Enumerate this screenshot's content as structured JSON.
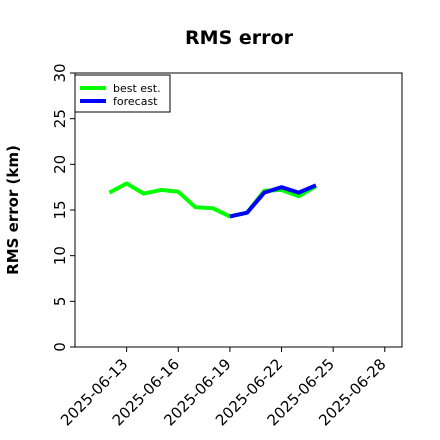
{
  "chart_data": {
    "type": "line",
    "title": "RMS error",
    "xlabel": "",
    "ylabel": "RMS error (km)",
    "ylim": [
      0,
      30
    ],
    "xlim": [
      "2025-06-10",
      "2025-06-29"
    ],
    "yticks": [
      0,
      5,
      10,
      15,
      20,
      25,
      30
    ],
    "xticks": [
      "2025-06-13",
      "2025-06-16",
      "2025-06-19",
      "2025-06-22",
      "2025-06-25",
      "2025-06-28"
    ],
    "highlighted_xtick": "2025-06-19",
    "highlight_color": "#228b22",
    "grid": false,
    "legend_position": "upper-left",
    "series": [
      {
        "name": "best est.",
        "color": "#00ff00",
        "x": [
          "2025-06-12",
          "2025-06-13",
          "2025-06-14",
          "2025-06-15",
          "2025-06-16",
          "2025-06-17",
          "2025-06-18",
          "2025-06-19",
          "2025-06-20",
          "2025-06-21",
          "2025-06-22",
          "2025-06-23",
          "2025-06-24"
        ],
        "y": [
          16.9,
          17.9,
          16.8,
          17.2,
          17.0,
          15.3,
          15.2,
          14.3,
          14.7,
          17.1,
          17.2,
          16.5,
          17.6
        ]
      },
      {
        "name": "forecast",
        "color": "#0000ff",
        "x": [
          "2025-06-19",
          "2025-06-20",
          "2025-06-21",
          "2025-06-22",
          "2025-06-23",
          "2025-06-24"
        ],
        "y": [
          14.3,
          14.7,
          16.9,
          17.5,
          16.9,
          17.7
        ]
      }
    ]
  }
}
